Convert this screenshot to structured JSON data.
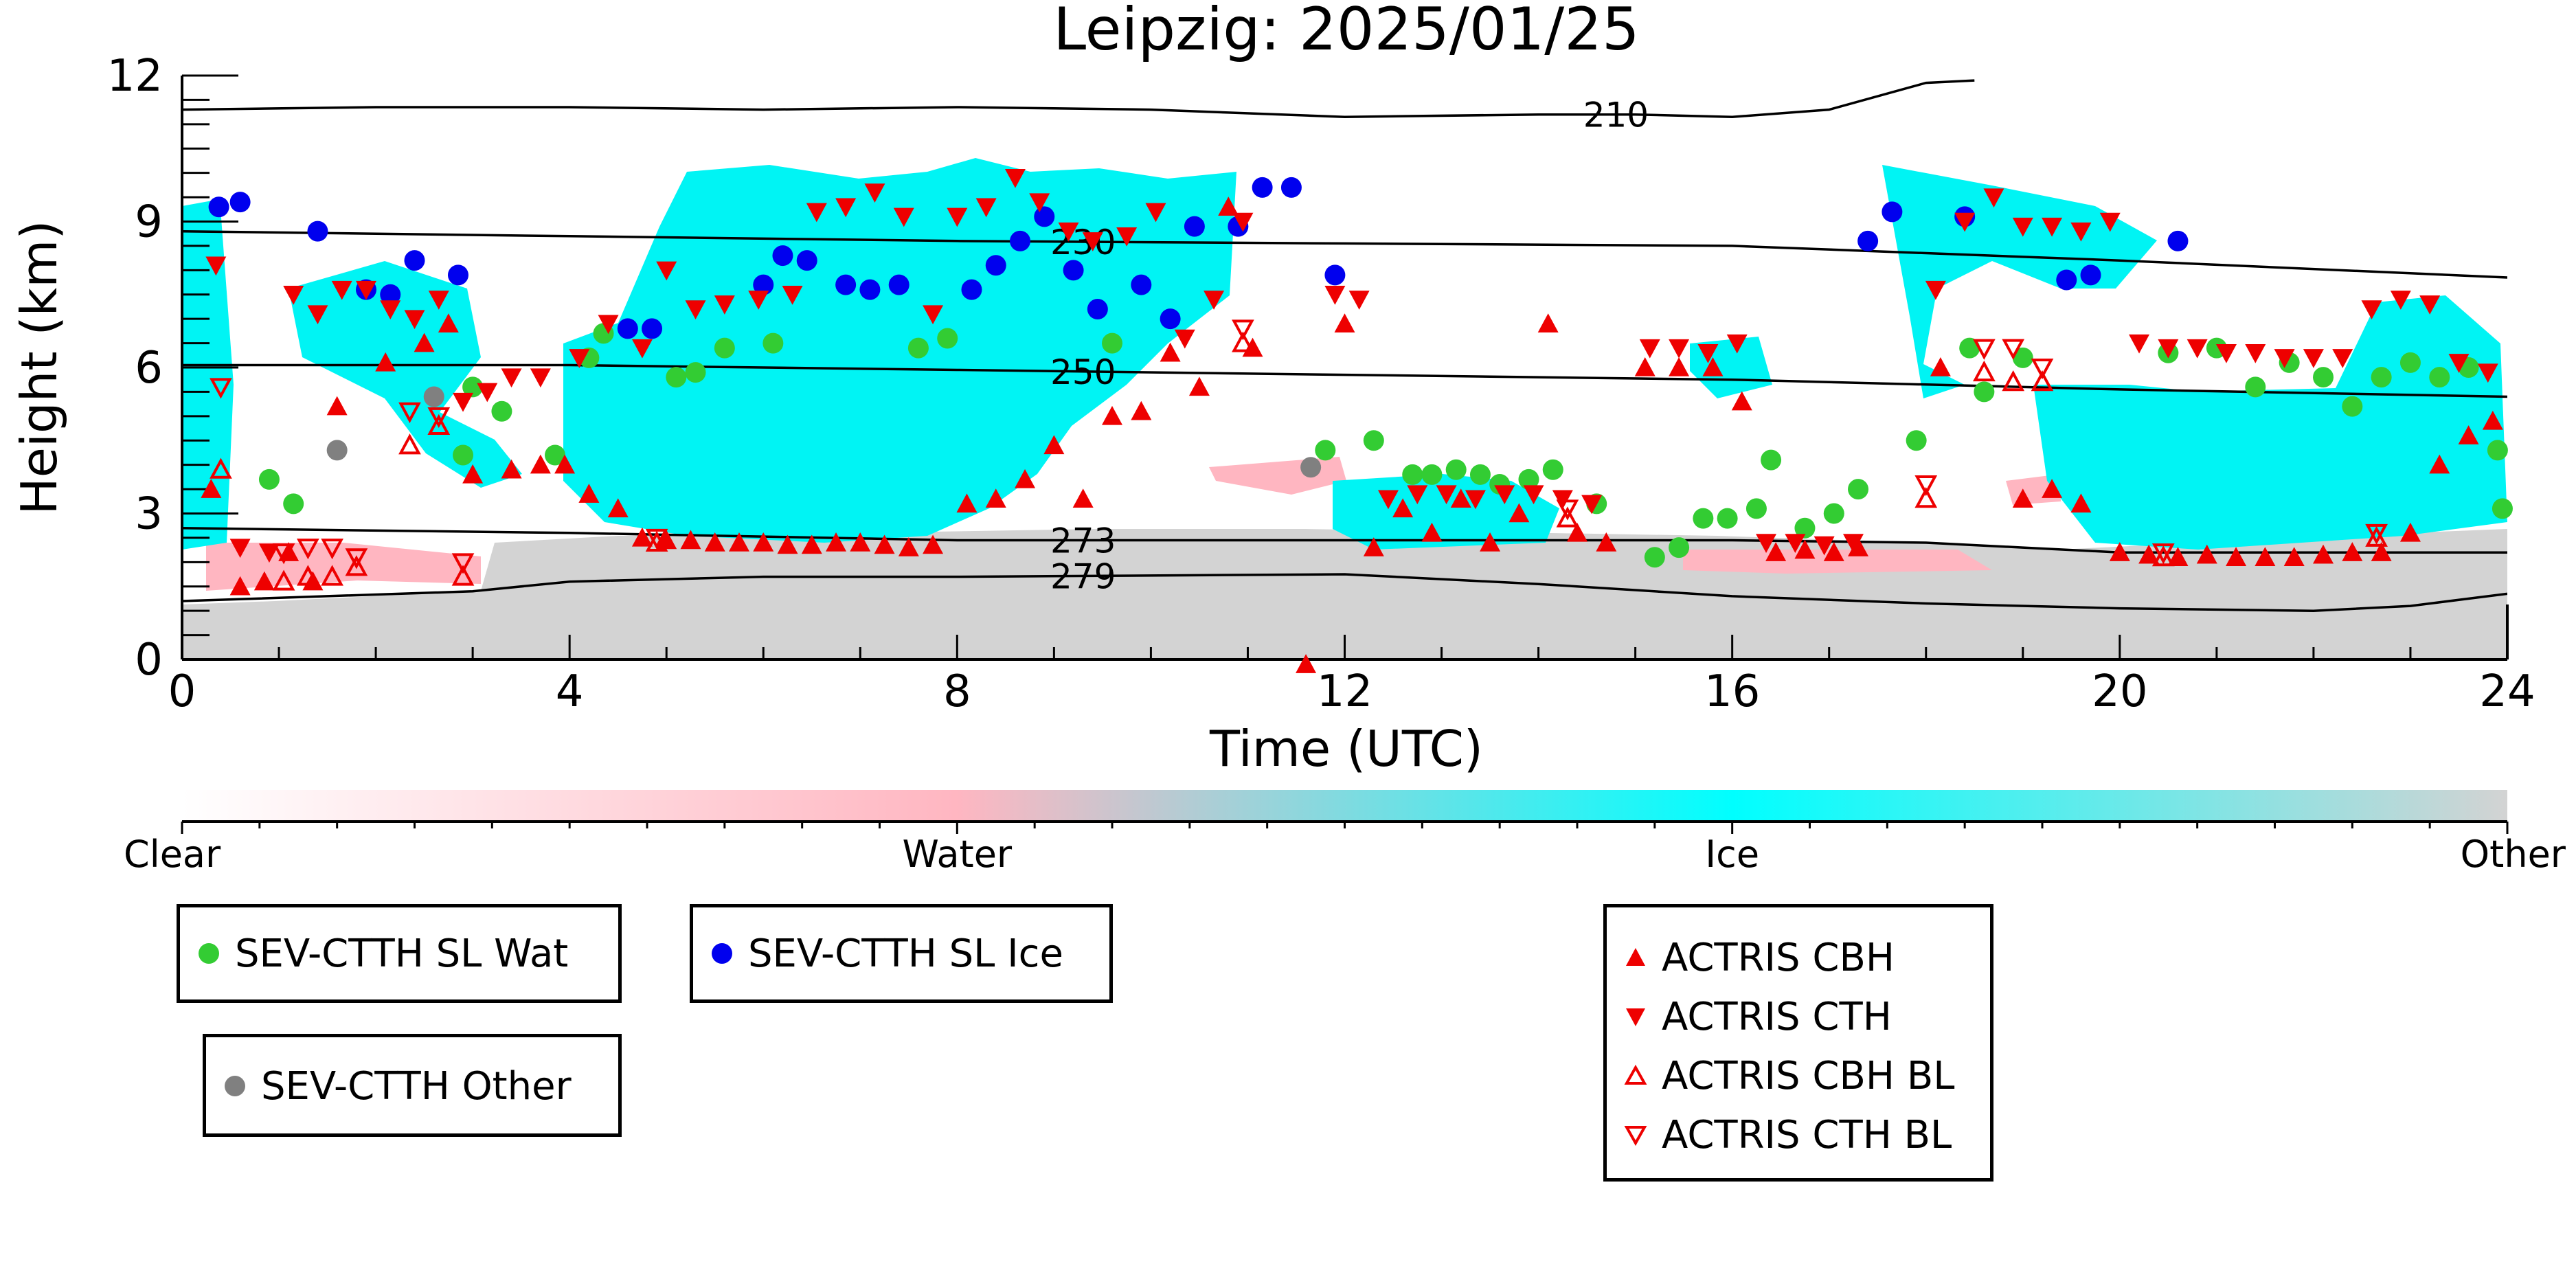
{
  "chart_data": {
    "type": "scatter",
    "title": "Leipzig: 2025/01/25",
    "xlabel": "Time (UTC)",
    "ylabel": "Height (km)",
    "xlim": [
      0,
      24
    ],
    "ylim": [
      0,
      12
    ],
    "x_ticks": [
      0,
      4,
      8,
      12,
      16,
      20,
      24
    ],
    "y_ticks": [
      0,
      3,
      6,
      9,
      12
    ],
    "grid": false,
    "colorbar": {
      "labels": [
        "Clear",
        "Water",
        "Ice",
        "Other"
      ],
      "colors": [
        "#ffffff",
        "#ffb6c1",
        "#00ffff",
        "#d3d3d3"
      ]
    },
    "temperature_contours": [
      {
        "label": "210",
        "x": [
          0,
          2,
          4,
          6,
          8,
          10,
          12,
          14,
          15,
          16,
          17,
          18,
          18.5
        ],
        "y": [
          11.3,
          11.35,
          11.35,
          11.3,
          11.35,
          11.3,
          11.15,
          11.2,
          11.2,
          11.15,
          11.3,
          11.85,
          11.9
        ]
      },
      {
        "label": "230",
        "x": [
          0,
          4,
          8,
          12,
          16,
          20,
          24
        ],
        "y": [
          8.8,
          8.7,
          8.6,
          8.55,
          8.5,
          8.2,
          7.85
        ]
      },
      {
        "label": "250",
        "x": [
          0,
          4,
          8,
          12,
          16,
          20,
          24
        ],
        "y": [
          6.05,
          6.05,
          5.95,
          5.85,
          5.75,
          5.55,
          5.4
        ]
      },
      {
        "label": "273",
        "x": [
          0,
          4,
          8,
          12,
          14,
          16,
          18,
          19,
          20,
          22,
          24
        ],
        "y": [
          2.7,
          2.6,
          2.45,
          2.45,
          2.45,
          2.45,
          2.4,
          2.3,
          2.2,
          2.2,
          2.2
        ]
      },
      {
        "label": "279",
        "x": [
          0,
          3,
          4,
          6,
          8,
          12,
          14,
          16,
          18,
          20,
          22,
          23,
          24
        ],
        "y": [
          1.2,
          1.4,
          1.6,
          1.7,
          1.7,
          1.75,
          1.55,
          1.3,
          1.15,
          1.05,
          1.0,
          1.1,
          1.35
        ]
      }
    ],
    "series": [
      {
        "name": "SEV-CTTH SL Wat",
        "color": "#33cc33",
        "marker": "circle",
        "x": [
          0.9,
          1.15,
          4.2,
          4.35,
          3.0,
          3.3,
          2.9,
          3.85,
          5.1,
          5.3,
          5.6,
          6.1,
          7.6,
          7.9,
          9.6,
          11.8,
          12.3,
          12.7,
          12.9,
          13.15,
          13.4,
          13.6,
          13.9,
          14.15,
          14.6,
          15.2,
          15.45,
          15.7,
          15.95,
          16.25,
          16.4,
          16.75,
          17.05,
          17.3,
          17.9,
          18.45,
          18.6,
          19.0,
          20.5,
          21.0,
          21.4,
          21.75,
          22.1,
          22.4,
          22.7,
          23.0,
          23.3,
          23.6,
          23.9,
          23.95
        ],
        "y": [
          3.7,
          3.2,
          6.2,
          6.7,
          5.6,
          5.1,
          4.2,
          4.2,
          5.8,
          5.9,
          6.4,
          6.5,
          6.4,
          6.6,
          6.5,
          4.3,
          4.5,
          3.8,
          3.8,
          3.9,
          3.8,
          3.6,
          3.7,
          3.9,
          3.2,
          2.1,
          2.3,
          2.9,
          2.9,
          3.1,
          4.1,
          2.7,
          3.0,
          3.5,
          4.5,
          6.4,
          5.5,
          6.2,
          6.3,
          6.4,
          5.6,
          6.1,
          5.8,
          5.2,
          5.8,
          6.1,
          5.8,
          6.0,
          4.3,
          3.1
        ]
      },
      {
        "name": "SEV-CTTH SL Ice",
        "color": "#0000ee",
        "marker": "circle",
        "x": [
          0.38,
          0.6,
          1.4,
          1.9,
          2.15,
          2.4,
          2.85,
          4.6,
          4.85,
          6.0,
          6.2,
          6.45,
          6.85,
          7.1,
          7.4,
          8.15,
          8.4,
          8.65,
          8.9,
          9.2,
          9.45,
          9.9,
          10.2,
          10.45,
          10.9,
          11.15,
          11.45,
          11.9,
          17.4,
          17.65,
          18.4,
          19.45,
          19.7,
          20.6
        ],
        "y": [
          9.3,
          9.4,
          8.8,
          7.6,
          7.5,
          8.2,
          7.9,
          6.8,
          6.8,
          7.7,
          8.3,
          8.2,
          7.7,
          7.6,
          7.7,
          7.6,
          8.1,
          8.6,
          9.1,
          8.0,
          7.2,
          7.7,
          7.0,
          8.9,
          8.9,
          9.7,
          9.7,
          7.9,
          8.6,
          9.2,
          9.1,
          7.8,
          7.9,
          8.6
        ],
        "note": ""
      },
      {
        "name": "SEV-CTTH Other",
        "color": "#808080",
        "marker": "circle",
        "x": [
          1.6,
          2.6,
          11.65
        ],
        "y": [
          4.3,
          5.4,
          3.95
        ]
      },
      {
        "name": "ACTRIS CBH",
        "color": "#ee0000",
        "marker": "triangle-up",
        "x": [
          0.3,
          0.6,
          0.85,
          1.1,
          1.35,
          1.6,
          2.1,
          2.5,
          2.75,
          3.0,
          3.4,
          3.7,
          3.95,
          4.2,
          4.5,
          4.75,
          5.0,
          5.25,
          5.5,
          5.75,
          6.0,
          6.25,
          6.5,
          6.75,
          7.0,
          7.25,
          7.5,
          7.75,
          8.1,
          8.4,
          8.7,
          9.0,
          9.3,
          9.6,
          9.9,
          10.2,
          10.5,
          10.8,
          11.05,
          11.6,
          12.0,
          12.3,
          12.6,
          12.9,
          13.2,
          13.5,
          13.8,
          14.1,
          14.4,
          14.7,
          15.1,
          15.45,
          15.8,
          16.1,
          16.45,
          16.75,
          17.05,
          17.3,
          18.15,
          19.0,
          19.3,
          19.6,
          20.0,
          20.3,
          20.6,
          20.9,
          21.2,
          21.5,
          21.8,
          22.1,
          22.4,
          22.7,
          23.0,
          23.3,
          23.6,
          23.85
        ],
        "y": [
          3.5,
          1.5,
          1.6,
          2.2,
          1.6,
          5.2,
          6.1,
          6.5,
          6.9,
          3.8,
          3.9,
          4.0,
          4.0,
          3.4,
          3.1,
          2.5,
          2.45,
          2.45,
          2.4,
          2.4,
          2.4,
          2.35,
          2.35,
          2.4,
          2.4,
          2.35,
          2.3,
          2.35,
          3.2,
          3.3,
          3.7,
          4.4,
          3.3,
          5.0,
          5.1,
          6.3,
          5.6,
          9.3,
          6.4,
          -0.1,
          6.9,
          2.3,
          3.1,
          2.6,
          3.3,
          2.4,
          3.0,
          6.9,
          2.6,
          2.4,
          6.0,
          6.0,
          6.0,
          5.3,
          2.2,
          2.25,
          2.2,
          2.3,
          6.0,
          3.3,
          3.5,
          3.2,
          2.2,
          2.15,
          2.1,
          2.15,
          2.1,
          2.1,
          2.1,
          2.15,
          2.2,
          2.2,
          2.6,
          4.0,
          4.6,
          4.9
        ]
      },
      {
        "name": "ACTRIS CTH",
        "color": "#ee0000",
        "marker": "triangle-down",
        "x": [
          0.35,
          0.6,
          0.9,
          1.15,
          1.4,
          1.65,
          1.9,
          2.15,
          2.4,
          2.65,
          2.9,
          3.15,
          3.4,
          3.7,
          4.1,
          4.4,
          4.75,
          5.0,
          5.3,
          5.6,
          5.95,
          6.3,
          6.55,
          6.85,
          7.15,
          7.45,
          7.75,
          8.0,
          8.3,
          8.6,
          8.85,
          9.15,
          9.4,
          9.75,
          10.05,
          10.35,
          10.65,
          10.95,
          11.9,
          12.15,
          12.45,
          12.75,
          13.05,
          13.35,
          13.65,
          13.95,
          14.25,
          14.55,
          15.15,
          15.45,
          15.75,
          16.05,
          16.35,
          16.65,
          16.95,
          17.25,
          18.1,
          18.4,
          18.7,
          19.0,
          19.3,
          19.6,
          19.9,
          20.2,
          20.5,
          20.8,
          21.1,
          21.4,
          21.7,
          22.0,
          22.3,
          22.6,
          22.9,
          23.2,
          23.5,
          23.8
        ],
        "y": [
          8.1,
          2.3,
          2.2,
          7.5,
          7.1,
          7.6,
          7.6,
          7.2,
          7.0,
          7.4,
          5.3,
          5.5,
          5.8,
          5.8,
          6.2,
          6.9,
          6.4,
          8.0,
          7.2,
          7.3,
          7.4,
          7.5,
          9.2,
          9.3,
          9.6,
          9.1,
          7.1,
          9.1,
          9.3,
          9.9,
          9.4,
          8.8,
          8.6,
          8.7,
          9.2,
          6.6,
          7.4,
          9.0,
          7.5,
          7.4,
          3.3,
          3.4,
          3.4,
          3.3,
          3.4,
          3.4,
          3.3,
          3.2,
          6.4,
          6.4,
          6.3,
          6.5,
          2.4,
          2.4,
          2.35,
          2.4,
          7.6,
          9.0,
          9.5,
          8.9,
          8.9,
          8.8,
          9.0,
          6.5,
          6.4,
          6.4,
          6.3,
          6.3,
          6.2,
          6.2,
          6.2,
          7.2,
          7.4,
          7.3,
          6.1,
          5.9
        ]
      },
      {
        "name": "ACTRIS CBH BL",
        "color": "#ee0000",
        "marker": "triangle-up-open",
        "x": [
          0.4,
          1.05,
          1.3,
          1.55,
          1.8,
          2.35,
          2.65,
          2.9,
          4.9,
          10.95,
          14.3,
          18.0,
          18.6,
          18.9,
          19.2,
          20.45,
          22.65
        ],
        "y": [
          3.9,
          1.6,
          1.7,
          1.7,
          1.9,
          4.4,
          4.8,
          1.7,
          2.4,
          6.5,
          2.9,
          3.3,
          5.9,
          5.7,
          5.7,
          2.1,
          2.5
        ]
      },
      {
        "name": "ACTRIS CTH BL",
        "color": "#ee0000",
        "marker": "triangle-down-open",
        "x": [
          0.4,
          1.05,
          1.3,
          1.55,
          1.8,
          2.35,
          2.65,
          2.9,
          4.9,
          10.95,
          14.3,
          18.0,
          18.6,
          18.9,
          19.2,
          20.45,
          22.65
        ],
        "y": [
          5.6,
          2.2,
          2.3,
          2.3,
          2.1,
          5.1,
          5.0,
          2.0,
          2.5,
          6.8,
          3.1,
          3.6,
          6.4,
          6.4,
          6.0,
          2.2,
          2.6
        ]
      }
    ]
  },
  "legend_groups": [
    {
      "id": "wat",
      "entries": [
        {
          "label": "SEV-CTTH SL Wat",
          "marker": "circle",
          "color": "#33cc33"
        }
      ]
    },
    {
      "id": "ice",
      "entries": [
        {
          "label": "SEV-CTTH SL Ice",
          "marker": "circle",
          "color": "#0000ee"
        }
      ]
    },
    {
      "id": "other",
      "entries": [
        {
          "label": "SEV-CTTH Other",
          "marker": "circle",
          "color": "#808080"
        }
      ]
    },
    {
      "id": "actris",
      "entries": [
        {
          "label": "ACTRIS CBH",
          "marker": "triangle-up",
          "color": "#ee0000"
        },
        {
          "label": "ACTRIS CTH",
          "marker": "triangle-down",
          "color": "#ee0000"
        },
        {
          "label": "ACTRIS CBH BL",
          "marker": "triangle-up-open",
          "color": "#ee0000"
        },
        {
          "label": "ACTRIS CTH BL",
          "marker": "triangle-down-open",
          "color": "#ee0000"
        }
      ]
    }
  ]
}
